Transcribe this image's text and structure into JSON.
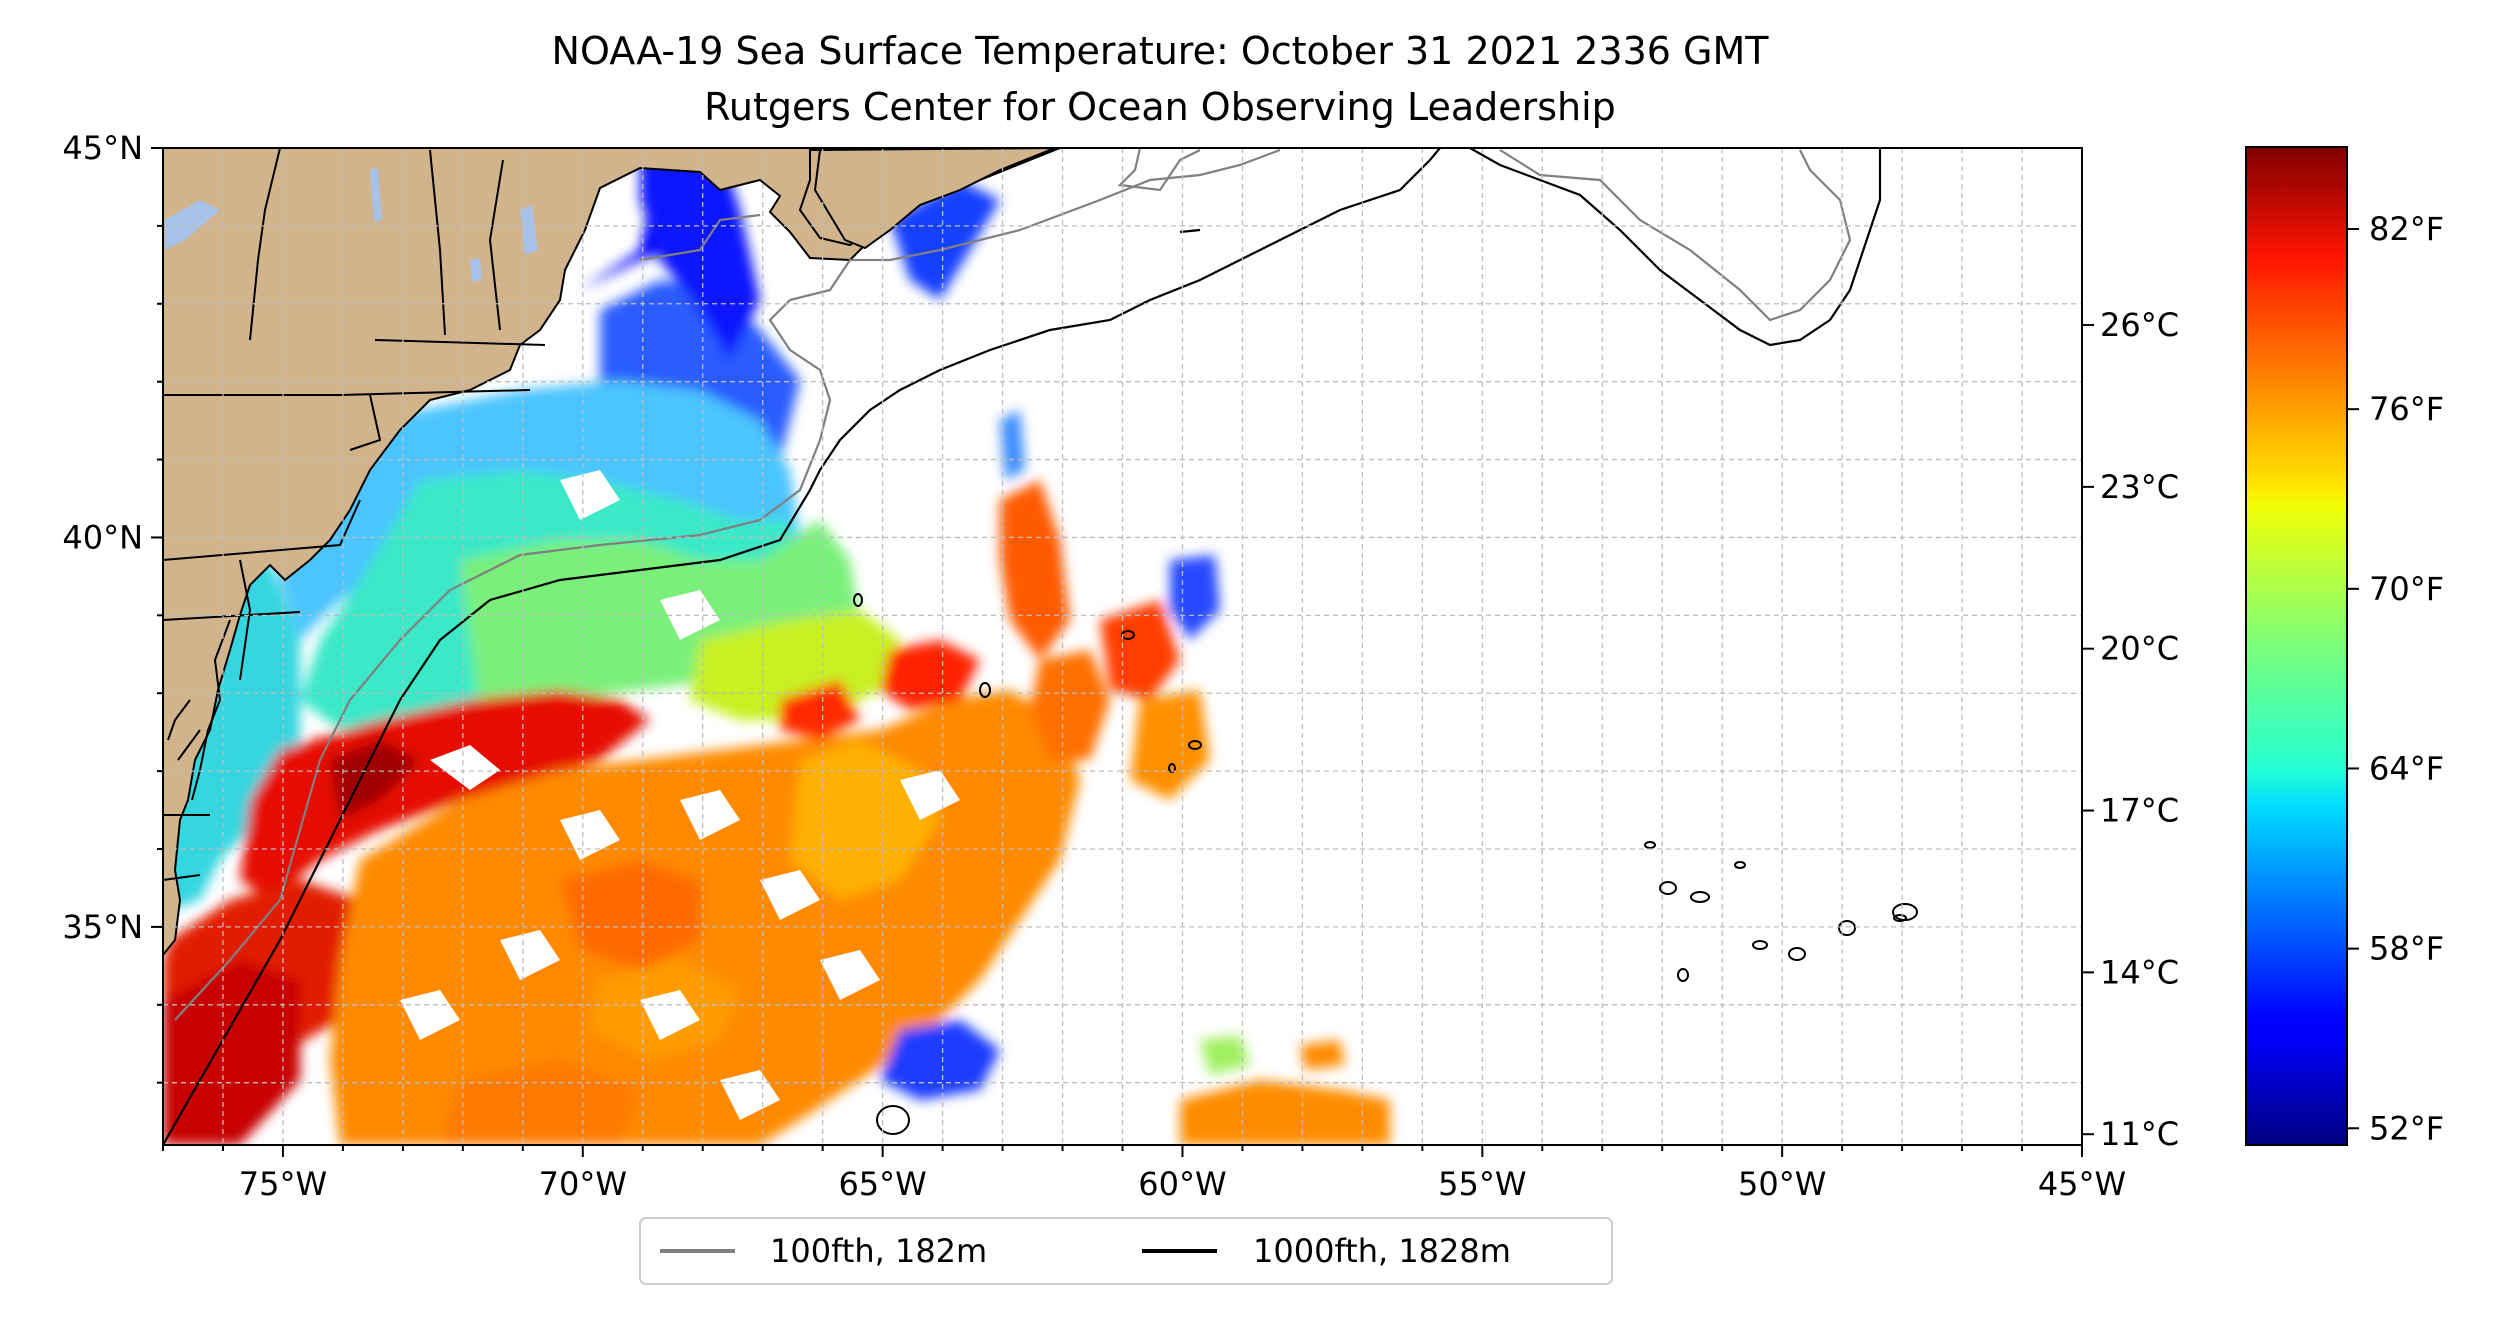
{
  "title": {
    "line1": "NOAA-19 Sea Surface Temperature: October 31 2021 2336 GMT",
    "line2": "Rutgers Center for Ocean Observing Leadership"
  },
  "map": {
    "lon_range": [
      -77,
      -45
    ],
    "lat_range": [
      32.2,
      45
    ],
    "x_ticks": [
      {
        "lon": -75,
        "label": "75°W"
      },
      {
        "lon": -70,
        "label": "70°W"
      },
      {
        "lon": -65,
        "label": "65°W"
      },
      {
        "lon": -60,
        "label": "60°W"
      },
      {
        "lon": -55,
        "label": "55°W"
      },
      {
        "lon": -50,
        "label": "50°W"
      },
      {
        "lon": -45,
        "label": "45°W"
      }
    ],
    "y_ticks": [
      {
        "lat": 45,
        "label": "45°N"
      },
      {
        "lat": 40,
        "label": "40°N"
      },
      {
        "lat": 35,
        "label": "35°N"
      }
    ],
    "gridlines": true,
    "land_color": "#d2b48c",
    "lake_color": "#a6c2e8"
  },
  "colorbar": {
    "colormap": "jet",
    "range_c": [
      10.8,
      29.3
    ],
    "celsius_ticks": [
      {
        "value": 11,
        "label": "11°C"
      },
      {
        "value": 14,
        "label": "14°C"
      },
      {
        "value": 17,
        "label": "17°C"
      },
      {
        "value": 20,
        "label": "20°C"
      },
      {
        "value": 23,
        "label": "23°C"
      },
      {
        "value": 26,
        "label": "26°C"
      }
    ],
    "fahrenheit_ticks": [
      {
        "value_c": 11.11,
        "label": "52°F"
      },
      {
        "value_c": 14.44,
        "label": "58°F"
      },
      {
        "value_c": 17.78,
        "label": "64°F"
      },
      {
        "value_c": 21.11,
        "label": "70°F"
      },
      {
        "value_c": 24.44,
        "label": "76°F"
      },
      {
        "value_c": 27.78,
        "label": "82°F"
      }
    ]
  },
  "legend": {
    "position": "bottom-center",
    "items": [
      {
        "label": "100fth, 182m",
        "color": "#808080"
      },
      {
        "label": "1000fth, 1828m",
        "color": "#000000"
      }
    ]
  }
}
